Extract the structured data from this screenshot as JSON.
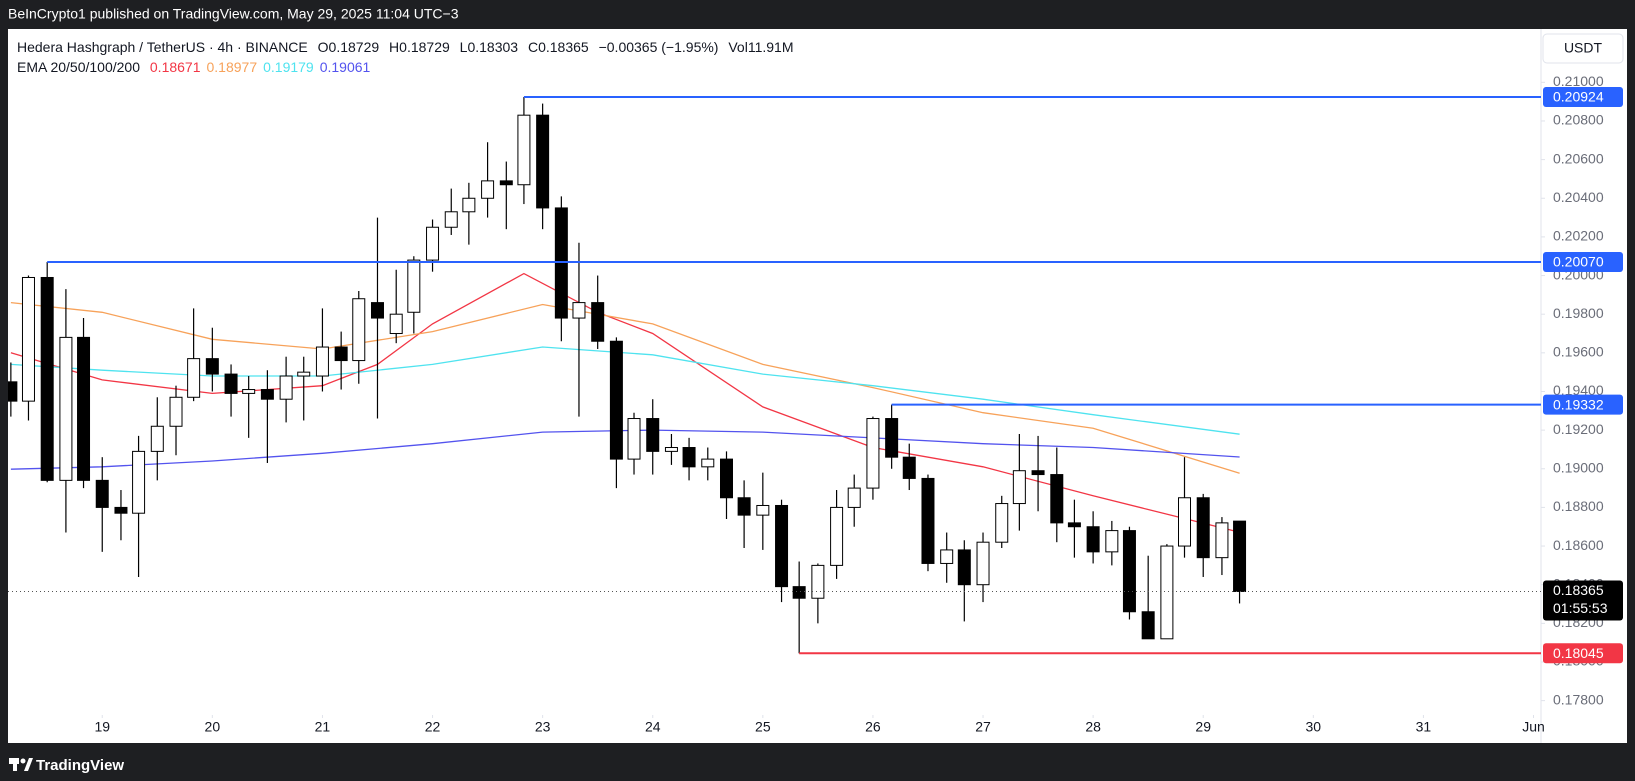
{
  "header": {
    "text": "BeInCrypto1 published on TradingView.com, May 29, 2025 11:04 UTC−3"
  },
  "footer": {
    "brand": "TradingView"
  },
  "chart_data": {
    "type": "candlestick",
    "symbol": "Hedera Hashgraph / TetherUS · 4h · BINANCE",
    "ohlc_legend": [
      {
        "label": "O",
        "value": "0.18729"
      },
      {
        "label": "H",
        "value": "0.18729"
      },
      {
        "label": "L",
        "value": "0.18303"
      },
      {
        "label": "C",
        "value": "0.18365"
      }
    ],
    "change": "−0.00365 (−1.95%)",
    "volume": {
      "label": "Vol",
      "value": "11.91M"
    },
    "ema_label": "EMA 20/50/100/200",
    "currency": "USDT",
    "up_color": "#ffffff",
    "down_color": "#000000",
    "xlim": [
      18.144,
      32.068
    ],
    "ylim": [
      0.17736,
      0.21276
    ],
    "xticks": [
      19,
      20,
      21,
      22,
      23,
      24,
      25,
      26,
      27,
      28,
      29,
      30,
      31,
      {
        "value": 32,
        "label": "Jun"
      }
    ],
    "yticks": [
      {
        "value": 0.178,
        "label": "0.17800"
      },
      {
        "value": 0.18,
        "label": "0.18000"
      },
      {
        "value": 0.182,
        "label": "0.18200"
      },
      {
        "value": 0.184,
        "label": "0.18400"
      },
      {
        "value": 0.186,
        "label": "0.18600"
      },
      {
        "value": 0.188,
        "label": "0.18800"
      },
      {
        "value": 0.19,
        "label": "0.19000"
      },
      {
        "value": 0.192,
        "label": "0.19200"
      },
      {
        "value": 0.194,
        "label": "0.19400"
      },
      {
        "value": 0.196,
        "label": "0.19600"
      },
      {
        "value": 0.198,
        "label": "0.19800"
      },
      {
        "value": 0.2,
        "label": "0.20000"
      },
      {
        "value": 0.202,
        "label": "0.20200"
      },
      {
        "value": 0.204,
        "label": "0.20400"
      },
      {
        "value": 0.206,
        "label": "0.20600"
      },
      {
        "value": 0.208,
        "label": "0.20800"
      },
      {
        "value": 0.21,
        "label": "0.21000"
      }
    ],
    "x": [
      18.17,
      18.33,
      18.5,
      18.67,
      18.83,
      19,
      19.17,
      19.33,
      19.5,
      19.67,
      19.83,
      20,
      20.17,
      20.33,
      20.5,
      20.67,
      20.83,
      21,
      21.17,
      21.33,
      21.5,
      21.67,
      21.83,
      22,
      22.17,
      22.33,
      22.5,
      22.67,
      22.83,
      23,
      23.17,
      23.33,
      23.5,
      23.67,
      23.83,
      24,
      24.17,
      24.33,
      24.5,
      24.67,
      24.83,
      25,
      25.17,
      25.33,
      25.5,
      25.67,
      25.83,
      26,
      26.17,
      26.33,
      26.5,
      26.67,
      26.83,
      27,
      27.17,
      27.33,
      27.5,
      27.67,
      27.83,
      28,
      28.17,
      28.33,
      28.5,
      28.67,
      28.83,
      29,
      29.17,
      29.33
    ],
    "open": [
      0.1945,
      0.1935,
      0.1999,
      0.1894,
      0.1968,
      0.1894,
      0.188,
      0.1877,
      0.1909,
      0.1922,
      0.1937,
      0.1957,
      0.1949,
      0.1939,
      0.1941,
      0.1936,
      0.1948,
      0.1948,
      0.1963,
      0.1956,
      0.1986,
      0.197,
      0.1981,
      0.2008,
      0.2025,
      0.2033,
      0.204,
      0.2049,
      0.2047,
      0.2083,
      0.2035,
      0.1978,
      0.1986,
      0.1966,
      0.1905,
      0.1926,
      0.1909,
      0.1911,
      0.1901,
      0.1905,
      0.1885,
      0.1876,
      0.1881,
      0.1839,
      0.1833,
      0.185,
      0.188,
      0.189,
      0.1926,
      0.1906,
      0.1895,
      0.1851,
      0.1858,
      0.184,
      0.1862,
      0.1882,
      0.1899,
      0.1897,
      0.1872,
      0.187,
      0.1857,
      0.1868,
      0.1826,
      0.1812,
      0.186,
      0.1885,
      0.1854,
      0.18729
    ],
    "high": [
      0.1955,
      0.2,
      0.2007,
      0.1993,
      0.1978,
      0.1906,
      0.1889,
      0.1917,
      0.1937,
      0.1943,
      0.1983,
      0.1973,
      0.1954,
      0.1948,
      0.1951,
      0.1958,
      0.1958,
      0.1983,
      0.1971,
      0.1992,
      0.203,
      0.2003,
      0.201,
      0.2029,
      0.2045,
      0.2048,
      0.2069,
      0.2059,
      0.20924,
      0.2089,
      0.2041,
      0.2017,
      0.2,
      0.1968,
      0.1929,
      0.1936,
      0.1918,
      0.1916,
      0.1911,
      0.1909,
      0.1894,
      0.1898,
      0.1884,
      0.1852,
      0.1851,
      0.1889,
      0.1897,
      0.1927,
      0.19332,
      0.1913,
      0.1897,
      0.1867,
      0.1863,
      0.1867,
      0.1886,
      0.1918,
      0.1917,
      0.1911,
      0.1884,
      0.1878,
      0.1873,
      0.187,
      0.1855,
      0.1861,
      0.1906,
      0.1887,
      0.1875,
      0.18729
    ],
    "low": [
      0.1927,
      0.1925,
      0.1893,
      0.1867,
      0.189,
      0.1857,
      0.1863,
      0.1844,
      0.1894,
      0.1907,
      0.1935,
      0.194,
      0.1927,
      0.1916,
      0.1903,
      0.1924,
      0.1925,
      0.194,
      0.1941,
      0.1944,
      0.1926,
      0.1965,
      0.197,
      0.2002,
      0.2021,
      0.2016,
      0.203,
      0.2024,
      0.2037,
      0.2024,
      0.1966,
      0.1927,
      0.1962,
      0.189,
      0.1897,
      0.1897,
      0.1902,
      0.1894,
      0.1894,
      0.1874,
      0.1859,
      0.1858,
      0.1831,
      0.18045,
      0.182,
      0.1843,
      0.187,
      0.1884,
      0.19,
      0.1889,
      0.1847,
      0.1841,
      0.1821,
      0.1831,
      0.1859,
      0.1868,
      0.1878,
      0.1862,
      0.1854,
      0.1851,
      0.185,
      0.1822,
      0.1812,
      0.1812,
      0.1854,
      0.1844,
      0.1845,
      0.18303
    ],
    "close": [
      0.1935,
      0.1999,
      0.1894,
      0.1968,
      0.1894,
      0.188,
      0.1877,
      0.1909,
      0.1922,
      0.1937,
      0.1957,
      0.1949,
      0.1939,
      0.1941,
      0.1936,
      0.1948,
      0.195,
      0.1963,
      0.1956,
      0.1988,
      0.1978,
      0.198,
      0.2008,
      0.2025,
      0.2033,
      0.204,
      0.2049,
      0.2047,
      0.2083,
      0.2035,
      0.1978,
      0.1986,
      0.1966,
      0.1905,
      0.1926,
      0.1909,
      0.1911,
      0.1901,
      0.1905,
      0.1885,
      0.1876,
      0.1881,
      0.1839,
      0.1833,
      0.185,
      0.188,
      0.189,
      0.1926,
      0.1906,
      0.1895,
      0.1851,
      0.1858,
      0.184,
      0.1862,
      0.1882,
      0.1899,
      0.1897,
      0.1872,
      0.187,
      0.1857,
      0.1868,
      0.1826,
      0.1812,
      0.186,
      0.1885,
      0.1854,
      0.1872,
      0.18365
    ],
    "series": [
      {
        "name": "0.18671",
        "color": "#f23645",
        "x": [
          18.17,
          19,
          20,
          21,
          21.5,
          22,
          22.83,
          23.5,
          24,
          25,
          26,
          27,
          28,
          29.33
        ],
        "values": [
          0.196,
          0.1946,
          0.1939,
          0.1943,
          0.1954,
          0.1975,
          0.2001,
          0.1981,
          0.197,
          0.1932,
          0.1911,
          0.1901,
          0.1886,
          0.18671
        ]
      },
      {
        "name": "0.18977",
        "color": "#f7a25a",
        "x": [
          18.17,
          19,
          20,
          21,
          22,
          23,
          24,
          25,
          26,
          27,
          28,
          29.33
        ],
        "values": [
          0.1986,
          0.1981,
          0.1967,
          0.1962,
          0.1971,
          0.1985,
          0.1975,
          0.1954,
          0.1942,
          0.1929,
          0.1921,
          0.18977
        ]
      },
      {
        "name": "0.19179",
        "color": "#4fe3ef",
        "x": [
          18.17,
          19,
          20,
          21,
          22,
          23,
          24,
          25,
          26,
          27,
          28,
          29.33
        ],
        "values": [
          0.1954,
          0.1951,
          0.1948,
          0.1948,
          0.1954,
          0.1963,
          0.1959,
          0.1949,
          0.1943,
          0.1936,
          0.1928,
          0.19179
        ]
      },
      {
        "name": "0.19061",
        "color": "#5353ee",
        "x": [
          18.17,
          19,
          20,
          21,
          22,
          23,
          24,
          25,
          26,
          27,
          28,
          29.33
        ],
        "values": [
          0.18998,
          0.1901,
          0.1904,
          0.1908,
          0.1913,
          0.1919,
          0.192,
          0.1919,
          0.1916,
          0.1913,
          0.1911,
          0.19061
        ]
      }
    ],
    "levels": [
      {
        "value": 0.20924,
        "label": "0.20924",
        "x_start": 22.83,
        "color": "#2962ff"
      },
      {
        "value": 0.2007,
        "label": "0.20070",
        "x_start": 18.5,
        "color": "#2962ff"
      },
      {
        "value": 0.19332,
        "label": "0.19332",
        "x_start": 26.17,
        "color": "#2962ff"
      },
      {
        "value": 0.18045,
        "label": "0.18045",
        "x_start": 25.33,
        "color": "#f23645"
      }
    ],
    "last_price": {
      "value": 0.18365,
      "label": "0.18365",
      "countdown": "01:55:53"
    }
  }
}
